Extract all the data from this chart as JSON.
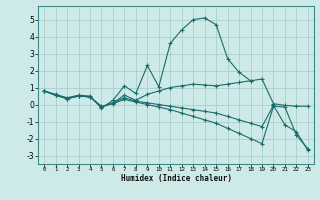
{
  "xlabel": "Humidex (Indice chaleur)",
  "bg_color": "#ceeae8",
  "grid_color": "#aacfcf",
  "line_color": "#1a6b6b",
  "xlim": [
    -0.5,
    23.5
  ],
  "ylim": [
    -3.5,
    5.8
  ],
  "yticks": [
    -3,
    -2,
    -1,
    0,
    1,
    2,
    3,
    4,
    5
  ],
  "xticks": [
    0,
    1,
    2,
    3,
    4,
    5,
    6,
    7,
    8,
    9,
    10,
    11,
    12,
    13,
    14,
    15,
    16,
    17,
    18,
    19,
    20,
    21,
    22,
    23
  ],
  "series": [
    {
      "x": [
        0,
        1,
        2,
        3,
        4,
        5,
        6,
        7,
        8,
        9,
        10,
        11,
        12,
        13,
        14,
        15,
        16,
        17,
        18
      ],
      "y": [
        0.8,
        0.6,
        0.4,
        0.55,
        0.5,
        -0.2,
        0.25,
        1.1,
        0.65,
        2.3,
        1.05,
        3.6,
        4.4,
        5.0,
        5.1,
        4.7,
        2.7,
        1.9,
        1.4
      ]
    },
    {
      "x": [
        0,
        1,
        2,
        3,
        4,
        5,
        6,
        7,
        8,
        9,
        10,
        11,
        12,
        13,
        14,
        15,
        16,
        17,
        18,
        19,
        20,
        21,
        22,
        23
      ],
      "y": [
        0.8,
        0.55,
        0.35,
        0.5,
        0.45,
        -0.15,
        0.1,
        0.55,
        0.25,
        0.6,
        0.8,
        1.0,
        1.1,
        1.2,
        1.15,
        1.1,
        1.2,
        1.3,
        1.4,
        1.5,
        0.05,
        -0.05,
        -0.1,
        -0.1
      ]
    },
    {
      "x": [
        0,
        1,
        2,
        3,
        4,
        5,
        6,
        7,
        8,
        9,
        10,
        11,
        12,
        13,
        14,
        15,
        16,
        17,
        18,
        19,
        20,
        21,
        22,
        23
      ],
      "y": [
        0.8,
        0.55,
        0.35,
        0.5,
        0.45,
        -0.15,
        0.1,
        0.4,
        0.2,
        0.1,
        0.0,
        -0.1,
        -0.2,
        -0.3,
        -0.4,
        -0.5,
        -0.7,
        -0.9,
        -1.1,
        -1.3,
        -0.05,
        -1.2,
        -1.6,
        -2.7
      ]
    },
    {
      "x": [
        0,
        1,
        2,
        3,
        4,
        5,
        6,
        7,
        8,
        9,
        10,
        11,
        12,
        13,
        14,
        15,
        16,
        17,
        18,
        19,
        20,
        21,
        22,
        23
      ],
      "y": [
        0.8,
        0.55,
        0.35,
        0.5,
        0.45,
        -0.1,
        0.05,
        0.3,
        0.15,
        0.0,
        -0.15,
        -0.3,
        -0.5,
        -0.7,
        -0.9,
        -1.1,
        -1.4,
        -1.7,
        -2.0,
        -2.3,
        -0.1,
        -0.15,
        -1.8,
        -2.6
      ]
    }
  ]
}
